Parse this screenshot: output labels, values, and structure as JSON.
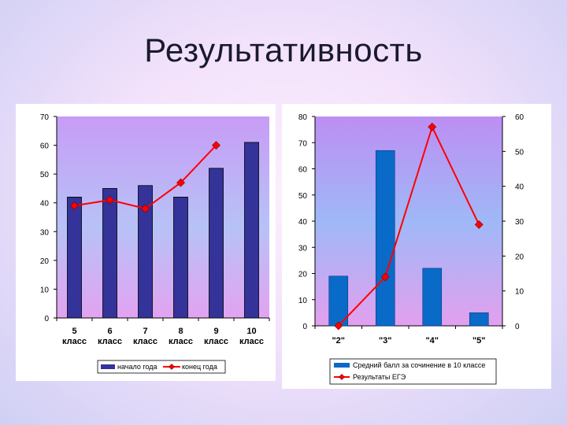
{
  "title": "Результативность",
  "colors": {
    "bar_fill": "#333399",
    "bar_fill_right": "#0a6ac8",
    "line": "#ff0000",
    "marker": "#ff0000"
  },
  "chart_data": [
    {
      "type": "bar",
      "categories": [
        "5 класс",
        "6 класс",
        "7 класс",
        "8 класс",
        "9 класс",
        "10 класс"
      ],
      "ylim": [
        0,
        70
      ],
      "yticks": [
        0,
        10,
        20,
        30,
        40,
        50,
        60,
        70
      ],
      "grid": false,
      "legend_position": "bottom",
      "series": [
        {
          "name": "начало года",
          "type": "bar",
          "values": [
            42,
            45,
            46,
            42,
            52,
            61
          ]
        },
        {
          "name": "конец года",
          "type": "line",
          "values": [
            39,
            41,
            38,
            47,
            60,
            null
          ]
        }
      ]
    },
    {
      "type": "bar",
      "categories": [
        "\"2\"",
        "\"3\"",
        "\"4\"",
        "\"5\""
      ],
      "ylim": [
        0,
        80
      ],
      "yticks": [
        0,
        10,
        20,
        30,
        40,
        50,
        60,
        70,
        80
      ],
      "y2lim": [
        0,
        60
      ],
      "y2ticks": [
        0,
        10,
        20,
        30,
        40,
        50,
        60
      ],
      "grid": false,
      "legend_position": "bottom",
      "series": [
        {
          "name": "Средний балл за сочинение в 10 классе",
          "type": "bar",
          "axis": "left",
          "values": [
            19,
            67,
            22,
            5
          ]
        },
        {
          "name": "Результаты ЕГЭ",
          "type": "line",
          "axis": "right",
          "values": [
            0,
            14,
            57,
            29
          ]
        }
      ]
    }
  ]
}
